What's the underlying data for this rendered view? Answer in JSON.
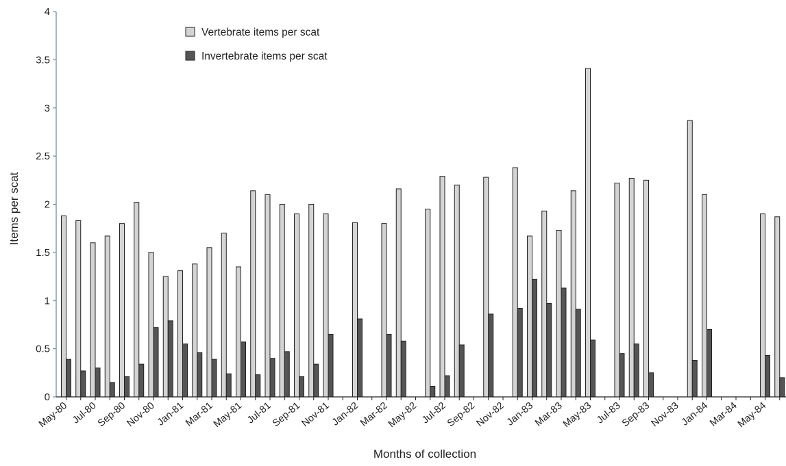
{
  "chart_data": {
    "type": "bar",
    "xlabel": "Months of collection",
    "ylabel": "Items per scat",
    "ylim": [
      0,
      4
    ],
    "yticks": [
      "0",
      "0.5",
      "1",
      "1.5",
      "2",
      "2.5",
      "3",
      "3.5",
      "4"
    ],
    "grid": false,
    "legend_position": "top-left",
    "months": [
      "May-80",
      "Jun-80",
      "Jul-80",
      "Aug-80",
      "Sep-80",
      "Oct-80",
      "Nov-80",
      "Dec-80",
      "Jan-81",
      "Feb-81",
      "Mar-81",
      "Apr-81",
      "May-81",
      "Jun-81",
      "Jul-81",
      "Aug-81",
      "Sep-81",
      "Oct-81",
      "Nov-81",
      "Dec-81",
      "Jan-82",
      "Feb-82",
      "Mar-82",
      "Apr-82",
      "May-82",
      "Jun-82",
      "Jul-82",
      "Aug-82",
      "Sep-82",
      "Oct-82",
      "Nov-82",
      "Dec-82",
      "Jan-83",
      "Feb-83",
      "Mar-83",
      "Apr-83",
      "May-83",
      "Jun-83",
      "Jul-83",
      "Aug-83",
      "Sep-83",
      "Oct-83",
      "Nov-83",
      "Dec-83",
      "Jan-84",
      "Feb-84",
      "Mar-84",
      "Apr-84",
      "May-84",
      "Jun-84"
    ],
    "tick_labels": [
      "May-80",
      "Jul-80",
      "Sep-80",
      "Nov-80",
      "Jan-81",
      "Mar-81",
      "May-81",
      "Jul-81",
      "Sep-81",
      "Nov-81",
      "Jan-82",
      "Mar-82",
      "May-82",
      "Jul-82",
      "Sep-82",
      "Nov-82",
      "Jan-83",
      "Mar-83",
      "May-83",
      "Jul-83",
      "Sep-83",
      "Nov-83",
      "Jan-84",
      "Mar-84",
      "May-84"
    ],
    "series": [
      {
        "name": "Vertebrate items per scat",
        "color": "#d4d4d4",
        "values": [
          1.88,
          1.83,
          1.6,
          1.67,
          1.8,
          2.02,
          1.5,
          1.25,
          1.31,
          1.38,
          1.55,
          1.7,
          1.35,
          2.14,
          2.1,
          2.0,
          1.9,
          2.0,
          1.9,
          null,
          1.81,
          null,
          1.8,
          2.16,
          null,
          1.95,
          2.29,
          2.2,
          null,
          2.28,
          null,
          2.38,
          1.67,
          1.93,
          1.73,
          2.14,
          3.41,
          null,
          2.22,
          2.27,
          2.25,
          null,
          null,
          2.87,
          2.1,
          null,
          null,
          null,
          1.9,
          1.87
        ]
      },
      {
        "name": "Invertebrate items per scat",
        "color": "#555555",
        "values": [
          0.39,
          0.27,
          0.3,
          0.15,
          0.21,
          0.34,
          0.72,
          0.79,
          0.55,
          0.46,
          0.39,
          0.24,
          0.57,
          0.23,
          0.4,
          0.47,
          0.21,
          0.34,
          0.65,
          null,
          0.81,
          null,
          0.65,
          0.58,
          null,
          0.11,
          0.22,
          0.54,
          null,
          0.86,
          null,
          0.92,
          1.22,
          0.97,
          1.13,
          0.91,
          0.59,
          null,
          0.45,
          0.55,
          0.25,
          null,
          null,
          0.38,
          0.7,
          null,
          null,
          null,
          0.43,
          0.2
        ]
      }
    ]
  }
}
